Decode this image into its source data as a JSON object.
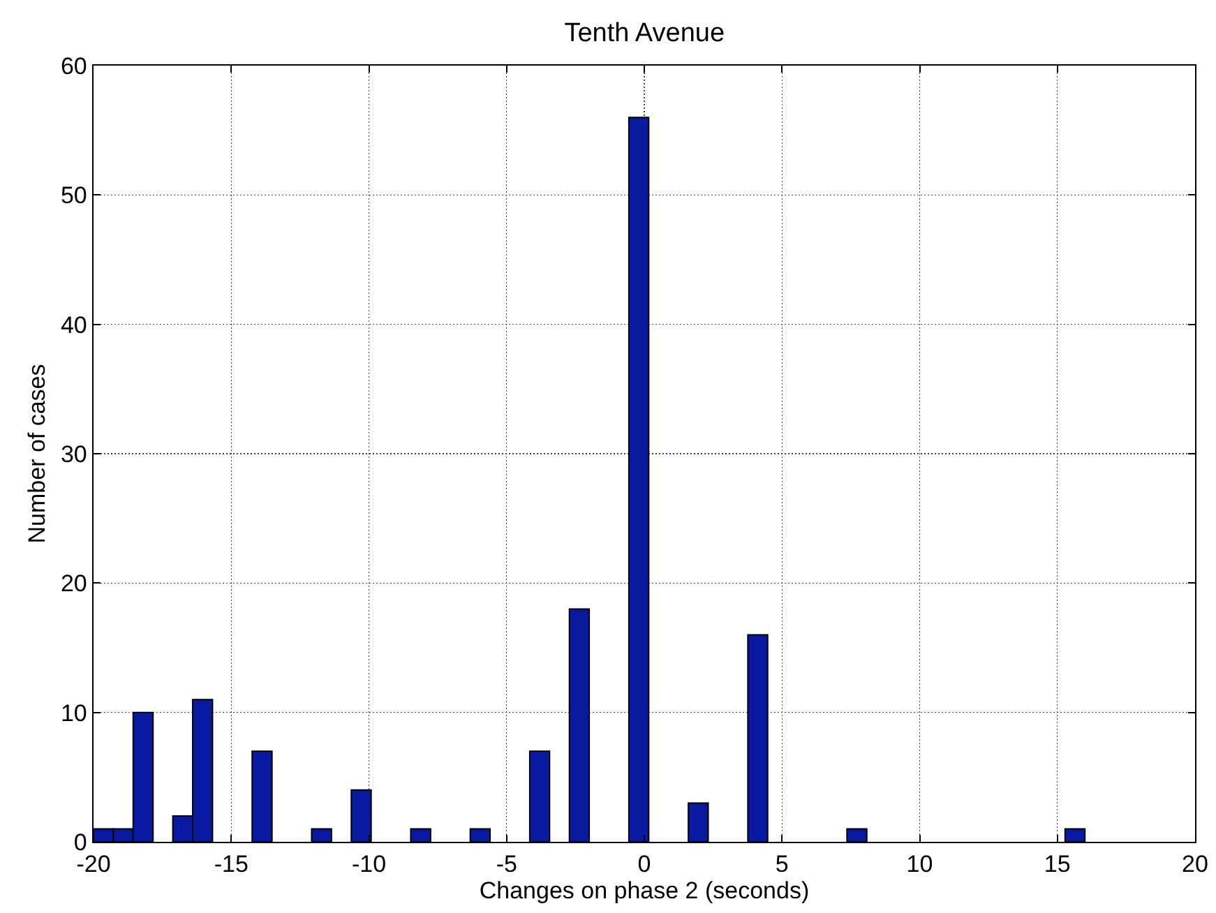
{
  "chart_data": {
    "type": "histogram",
    "title": "Tenth Avenue",
    "xlabel": "Changes on phase 2 (seconds)",
    "ylabel": "Number of cases",
    "bins": [
      -20,
      -19.28,
      -18.56,
      -17.84,
      -17.12,
      -16.4,
      -15.68,
      -14.96,
      -14.24,
      -13.52,
      -12.8,
      -12.08,
      -11.36,
      -10.64,
      -9.92,
      -9.2,
      -8.48,
      -7.76,
      -7.04,
      -6.32,
      -5.6,
      -4.88,
      -4.16,
      -3.44,
      -2.72,
      -2,
      -1.28,
      -0.56,
      0.16,
      0.88,
      1.6,
      2.32,
      3.04,
      3.76,
      4.48,
      5.2,
      5.92,
      6.64,
      7.36,
      8.08,
      8.8,
      9.52,
      10.24,
      10.96,
      11.68,
      12.4,
      13.12,
      13.84,
      14.56,
      15.28,
      16
    ],
    "values": [
      1,
      1,
      10,
      0,
      2,
      11,
      0,
      0,
      7,
      0,
      0,
      1,
      0,
      4,
      0,
      0,
      1,
      0,
      0,
      1,
      0,
      0,
      7,
      0,
      18,
      0,
      0,
      56,
      0,
      0,
      3,
      0,
      0,
      16,
      0,
      0,
      0,
      0,
      1,
      0,
      0,
      0,
      0,
      0,
      0,
      0,
      0,
      0,
      0,
      1
    ],
    "color": "#0a1aa0",
    "xlim": [
      -20,
      20
    ],
    "xticks": [
      -20,
      -15,
      -10,
      -5,
      0,
      5,
      10,
      15,
      20
    ],
    "ylim": [
      0,
      60
    ],
    "yticks": [
      0,
      10,
      20,
      30,
      40,
      50,
      60
    ],
    "grid": true
  }
}
